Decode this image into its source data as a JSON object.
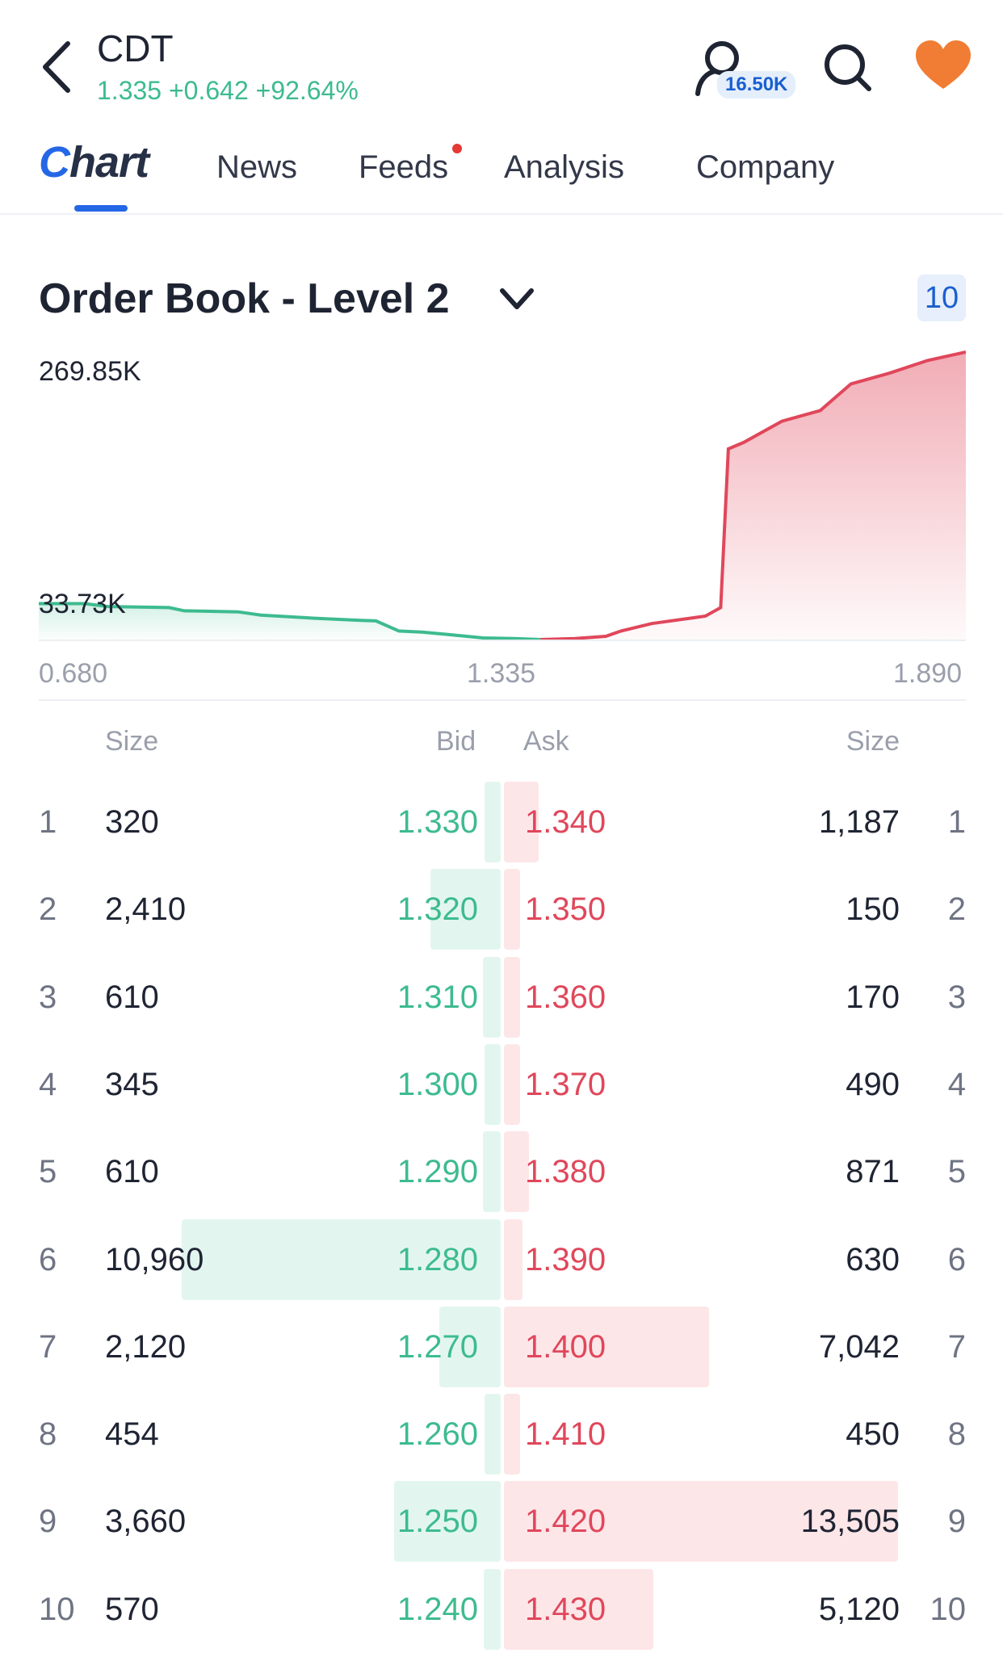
{
  "header": {
    "ticker": "CDT",
    "quote": "1.335 +0.642 +92.64%",
    "followers": "16.50K",
    "icons": [
      "back-arrow-icon",
      "profile-icon",
      "search-icon",
      "heart-icon"
    ],
    "colors": {
      "up": "#3dbb8f",
      "down": "#e0475b",
      "accent": "#2467e6",
      "heart": "#f07d33"
    }
  },
  "tabs": [
    {
      "label": "Chart",
      "active": true
    },
    {
      "label": "News"
    },
    {
      "label": "Feeds",
      "badge_dot": true
    },
    {
      "label": "Analysis"
    },
    {
      "label": "Company"
    }
  ],
  "orderbook": {
    "title": "Order Book - Level 2",
    "depth": "10",
    "columns": {
      "bid_size": "Size",
      "bid": "Bid",
      "ask": "Ask",
      "ask_size": "Size"
    },
    "rows": [
      {
        "n": "1",
        "bid_size": "320",
        "bid": "1.330",
        "ask": "1.340",
        "ask_size": "1,187"
      },
      {
        "n": "2",
        "bid_size": "2,410",
        "bid": "1.320",
        "ask": "1.350",
        "ask_size": "150"
      },
      {
        "n": "3",
        "bid_size": "610",
        "bid": "1.310",
        "ask": "1.360",
        "ask_size": "170"
      },
      {
        "n": "4",
        "bid_size": "345",
        "bid": "1.300",
        "ask": "1.370",
        "ask_size": "490"
      },
      {
        "n": "5",
        "bid_size": "610",
        "bid": "1.290",
        "ask": "1.380",
        "ask_size": "871"
      },
      {
        "n": "6",
        "bid_size": "10,960",
        "bid": "1.280",
        "ask": "1.390",
        "ask_size": "630"
      },
      {
        "n": "7",
        "bid_size": "2,120",
        "bid": "1.270",
        "ask": "1.400",
        "ask_size": "7,042"
      },
      {
        "n": "8",
        "bid_size": "454",
        "bid": "1.260",
        "ask": "1.410",
        "ask_size": "450"
      },
      {
        "n": "9",
        "bid_size": "3,660",
        "bid": "1.250",
        "ask": "1.420",
        "ask_size": "13,505"
      },
      {
        "n": "10",
        "bid_size": "570",
        "bid": "1.240",
        "ask": "1.430",
        "ask_size": "5,120"
      }
    ]
  },
  "chart_data": {
    "type": "area",
    "y_labels": [
      "269.85K",
      "33.73K"
    ],
    "x_ticks": [
      "0.680",
      "1.335",
      "1.890"
    ],
    "xlim": [
      0.68,
      1.89
    ],
    "ylim": [
      0,
      269850
    ],
    "series": [
      {
        "side": "bid",
        "color": "#3dbb8f",
        "x": [
          0.68,
          0.74,
          0.77,
          0.85,
          0.87,
          0.94,
          0.97,
          1.04,
          1.1,
          1.12,
          1.15,
          1.18,
          1.21,
          1.26,
          1.3,
          1.335
        ],
        "y": [
          33730,
          33730,
          31000,
          30000,
          27000,
          26000,
          23000,
          20000,
          18000,
          17500,
          8000,
          7000,
          5000,
          1500,
          1000,
          0
        ]
      },
      {
        "side": "ask",
        "color": "#e0475b",
        "x": [
          1.335,
          1.38,
          1.42,
          1.44,
          1.48,
          1.53,
          1.55,
          1.57,
          1.58,
          1.6,
          1.65,
          1.7,
          1.74,
          1.79,
          1.84,
          1.89
        ],
        "y": [
          0,
          1000,
          3000,
          8000,
          15000,
          20000,
          22000,
          30000,
          179000,
          185000,
          205000,
          215000,
          240000,
          250000,
          262000,
          269850
        ]
      }
    ]
  }
}
